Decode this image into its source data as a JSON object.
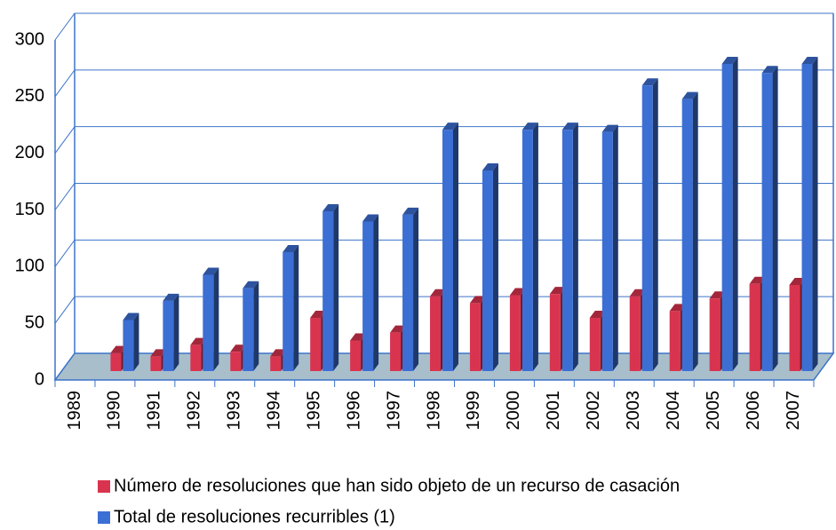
{
  "chart_data": {
    "type": "bar3d",
    "categories": [
      "1989",
      "1990",
      "1991",
      "1992",
      "1993",
      "1994",
      "1995",
      "1996",
      "1997",
      "1998",
      "1999",
      "2000",
      "2001",
      "2002",
      "2003",
      "2004",
      "2005",
      "2006",
      "2007"
    ],
    "series": [
      {
        "name": "Número de resoluciones que han sido objeto de un recurso de casación",
        "color": "#d9344f",
        "values": [
          null,
          16,
          13,
          23,
          17,
          13,
          47,
          27,
          34,
          66,
          60,
          67,
          68,
          47,
          66,
          53,
          64,
          77,
          76
        ]
      },
      {
        "name": "Total de resoluciones recurribles (1)",
        "color": "#3c6fd4",
        "values": [
          null,
          45,
          62,
          85,
          73,
          105,
          141,
          132,
          138,
          213,
          177,
          213,
          213,
          211,
          252,
          240,
          271,
          263,
          271
        ]
      }
    ],
    "ylim": [
      0,
      300
    ],
    "yticks": [
      0,
      50,
      100,
      150,
      200,
      250,
      300
    ],
    "grid": true,
    "legend": "bottom"
  }
}
